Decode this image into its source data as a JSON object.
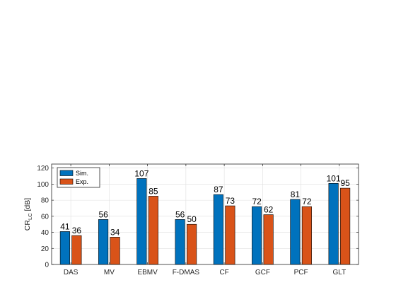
{
  "chart_data": {
    "type": "bar",
    "categories": [
      "DAS",
      "MV",
      "EBMV",
      "F-DMAS",
      "CF",
      "GCF",
      "PCF",
      "GLT"
    ],
    "series": [
      {
        "name": "Sim.",
        "values": [
          41,
          56,
          107,
          56,
          87,
          72,
          81,
          101
        ],
        "color": "#0072BD"
      },
      {
        "name": "Exp.",
        "values": [
          36,
          34,
          85,
          50,
          73,
          62,
          72,
          95
        ],
        "color": "#D95319"
      }
    ],
    "ylabel_main": "CR",
    "ylabel_sub": "LC",
    "ylabel_unit": " [dB]",
    "ylim": [
      0,
      125
    ],
    "yticks": [
      0,
      20,
      40,
      60,
      80,
      100,
      120
    ],
    "grid": true,
    "legend_position": "top-left"
  }
}
